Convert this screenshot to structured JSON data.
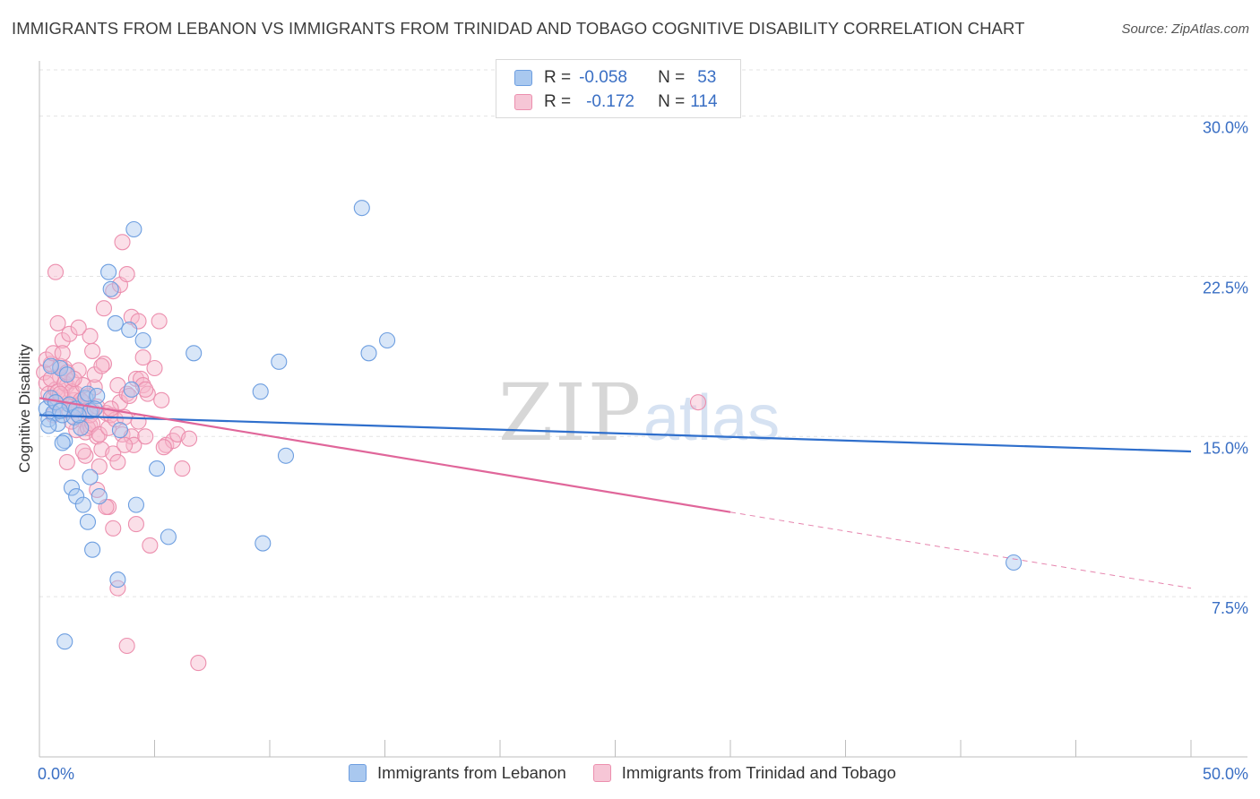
{
  "title": "IMMIGRANTS FROM LEBANON VS IMMIGRANTS FROM TRINIDAD AND TOBAGO COGNITIVE DISABILITY CORRELATION CHART",
  "source": "Source: ZipAtlas.com",
  "watermark": {
    "zip": "ZIP",
    "atlas": "atlas"
  },
  "legend": {
    "r_label": "R =",
    "n_label": "N =",
    "series": [
      {
        "r": "-0.058",
        "n": "53"
      },
      {
        "r": "-0.172",
        "n": "114"
      }
    ]
  },
  "colors": {
    "blue_fill": "#a9c8ef",
    "blue_stroke": "#6d9ee0",
    "blue_line": "#2f6fcc",
    "pink_fill": "#f6b7cb",
    "pink_stroke": "#ec8fae",
    "pink_line": "#e0669a",
    "tick_text": "#3a6fc4"
  },
  "chart_data": {
    "type": "scatter",
    "title": "IMMIGRANTS FROM LEBANON VS IMMIGRANTS FROM TRINIDAD AND TOBAGO COGNITIVE DISABILITY CORRELATION CHART",
    "xlabel": "",
    "ylabel": "Cognitive Disability",
    "xlim": [
      0,
      50
    ],
    "ylim": [
      0,
      32.5
    ],
    "x_tick_labels": [
      "0.0%",
      "50.0%"
    ],
    "y_ticks": [
      {
        "value": 7.5,
        "label": "7.5%"
      },
      {
        "value": 15,
        "label": "15.0%"
      },
      {
        "value": 22.5,
        "label": "22.5%"
      },
      {
        "value": 30,
        "label": "30.0%"
      }
    ],
    "series": [
      {
        "name": "Immigrants from Lebanon",
        "color": "blue",
        "r": -0.058,
        "n": 53,
        "trend": {
          "x0": 0,
          "y0": 16.0,
          "x1": 50,
          "y1": 14.3,
          "solid_until": 50
        },
        "points": [
          [
            0.3,
            16.3
          ],
          [
            0.4,
            15.8
          ],
          [
            0.5,
            16.8
          ],
          [
            0.6,
            16.1
          ],
          [
            0.8,
            15.6
          ],
          [
            0.9,
            18.2
          ],
          [
            1.0,
            16.0
          ],
          [
            1.1,
            14.8
          ],
          [
            1.3,
            16.5
          ],
          [
            1.5,
            15.9
          ],
          [
            1.6,
            16.3
          ],
          [
            1.8,
            15.4
          ],
          [
            2.0,
            16.8
          ],
          [
            2.1,
            17.0
          ],
          [
            2.2,
            16.2
          ],
          [
            0.5,
            18.3
          ],
          [
            1.2,
            17.9
          ],
          [
            1.4,
            12.6
          ],
          [
            1.6,
            12.2
          ],
          [
            1.9,
            11.8
          ],
          [
            2.1,
            11.0
          ],
          [
            2.2,
            13.1
          ],
          [
            2.3,
            9.7
          ],
          [
            2.5,
            16.9
          ],
          [
            2.6,
            12.2
          ],
          [
            3.0,
            22.7
          ],
          [
            3.1,
            21.9
          ],
          [
            3.3,
            20.3
          ],
          [
            3.4,
            8.3
          ],
          [
            3.5,
            15.3
          ],
          [
            3.9,
            20.0
          ],
          [
            4.0,
            17.2
          ],
          [
            4.1,
            24.7
          ],
          [
            4.2,
            11.8
          ],
          [
            4.5,
            19.5
          ],
          [
            5.1,
            13.5
          ],
          [
            5.6,
            10.3
          ],
          [
            6.7,
            18.9
          ],
          [
            9.6,
            17.1
          ],
          [
            9.7,
            10.0
          ],
          [
            10.4,
            18.5
          ],
          [
            10.7,
            14.1
          ],
          [
            14.0,
            25.7
          ],
          [
            14.3,
            18.9
          ],
          [
            15.1,
            19.5
          ],
          [
            1.1,
            5.4
          ],
          [
            0.7,
            16.6
          ],
          [
            0.9,
            16.2
          ],
          [
            1.7,
            16.0
          ],
          [
            0.4,
            15.5
          ],
          [
            42.3,
            9.1
          ],
          [
            2.4,
            16.3
          ],
          [
            1.0,
            14.7
          ]
        ]
      },
      {
        "name": "Immigrants from Trinidad and Tobago",
        "color": "pink",
        "r": -0.172,
        "n": 114,
        "trend": {
          "x0": 0,
          "y0": 16.8,
          "x1": 50,
          "y1": 7.9,
          "solid_until": 30
        },
        "points": [
          [
            0.2,
            18.0
          ],
          [
            0.3,
            17.5
          ],
          [
            0.4,
            17.0
          ],
          [
            0.5,
            18.4
          ],
          [
            0.6,
            16.8
          ],
          [
            0.7,
            17.2
          ],
          [
            0.8,
            16.5
          ],
          [
            0.9,
            17.8
          ],
          [
            1.0,
            16.9
          ],
          [
            1.1,
            18.2
          ],
          [
            1.2,
            17.4
          ],
          [
            1.3,
            16.2
          ],
          [
            1.4,
            17.6
          ],
          [
            1.5,
            16.7
          ],
          [
            1.6,
            17.0
          ],
          [
            1.7,
            16.4
          ],
          [
            1.8,
            15.8
          ],
          [
            1.9,
            16.6
          ],
          [
            2.0,
            15.2
          ],
          [
            2.1,
            16.9
          ],
          [
            2.2,
            15.5
          ],
          [
            2.3,
            16.2
          ],
          [
            2.4,
            17.3
          ],
          [
            2.5,
            15.0
          ],
          [
            0.3,
            18.6
          ],
          [
            0.5,
            17.7
          ],
          [
            0.6,
            18.9
          ],
          [
            0.8,
            17.1
          ],
          [
            0.9,
            18.3
          ],
          [
            1.0,
            19.5
          ],
          [
            1.1,
            17.5
          ],
          [
            1.2,
            18.0
          ],
          [
            1.3,
            16.5
          ],
          [
            1.4,
            17.1
          ],
          [
            1.5,
            16.3
          ],
          [
            1.6,
            15.3
          ],
          [
            1.7,
            18.1
          ],
          [
            1.8,
            16.7
          ],
          [
            1.9,
            17.4
          ],
          [
            2.0,
            16.2
          ],
          [
            2.1,
            15.4
          ],
          [
            2.2,
            16.0
          ],
          [
            2.3,
            15.6
          ],
          [
            2.4,
            17.9
          ],
          [
            2.5,
            16.4
          ],
          [
            2.6,
            15.1
          ],
          [
            2.7,
            14.4
          ],
          [
            2.8,
            18.4
          ],
          [
            2.9,
            16.1
          ],
          [
            3.0,
            15.4
          ],
          [
            3.1,
            16.0
          ],
          [
            3.2,
            14.2
          ],
          [
            3.3,
            15.8
          ],
          [
            3.4,
            17.4
          ],
          [
            3.5,
            16.6
          ],
          [
            3.6,
            15.1
          ],
          [
            3.7,
            15.9
          ],
          [
            3.8,
            17.0
          ],
          [
            3.9,
            16.9
          ],
          [
            4.0,
            15.0
          ],
          [
            4.1,
            14.6
          ],
          [
            4.2,
            17.7
          ],
          [
            4.3,
            15.7
          ],
          [
            4.4,
            17.7
          ],
          [
            4.5,
            17.4
          ],
          [
            4.6,
            15.0
          ],
          [
            4.7,
            17.0
          ],
          [
            5.0,
            18.2
          ],
          [
            5.2,
            20.4
          ],
          [
            5.3,
            16.7
          ],
          [
            5.5,
            14.6
          ],
          [
            5.8,
            14.8
          ],
          [
            6.0,
            15.1
          ],
          [
            6.2,
            13.5
          ],
          [
            0.7,
            22.7
          ],
          [
            1.3,
            19.8
          ],
          [
            2.2,
            19.7
          ],
          [
            2.8,
            21.0
          ],
          [
            3.2,
            21.8
          ],
          [
            3.5,
            22.1
          ],
          [
            3.6,
            24.1
          ],
          [
            3.8,
            22.6
          ],
          [
            4.0,
            20.6
          ],
          [
            4.3,
            20.4
          ],
          [
            4.5,
            18.7
          ],
          [
            1.2,
            13.8
          ],
          [
            2.0,
            14.1
          ],
          [
            2.5,
            12.5
          ],
          [
            3.0,
            11.7
          ],
          [
            3.2,
            10.7
          ],
          [
            3.4,
            13.8
          ],
          [
            4.2,
            10.9
          ],
          [
            4.8,
            9.9
          ],
          [
            5.4,
            14.5
          ],
          [
            6.9,
            4.4
          ],
          [
            3.8,
            5.2
          ],
          [
            3.4,
            7.9
          ],
          [
            2.9,
            11.7
          ],
          [
            2.6,
            13.6
          ],
          [
            1.9,
            14.3
          ],
          [
            0.9,
            17.0
          ],
          [
            0.6,
            16.0
          ],
          [
            1.5,
            17.7
          ],
          [
            2.7,
            18.3
          ],
          [
            3.1,
            16.3
          ],
          [
            1.0,
            18.9
          ],
          [
            4.6,
            17.2
          ],
          [
            2.3,
            19.0
          ],
          [
            1.7,
            20.1
          ],
          [
            0.8,
            20.3
          ],
          [
            3.7,
            14.6
          ],
          [
            28.6,
            16.6
          ],
          [
            6.5,
            14.9
          ],
          [
            1.4,
            15.7
          ]
        ]
      }
    ],
    "bottom_legend": [
      "Immigrants from Lebanon",
      "Immigrants from Trinidad and Tobago"
    ]
  }
}
